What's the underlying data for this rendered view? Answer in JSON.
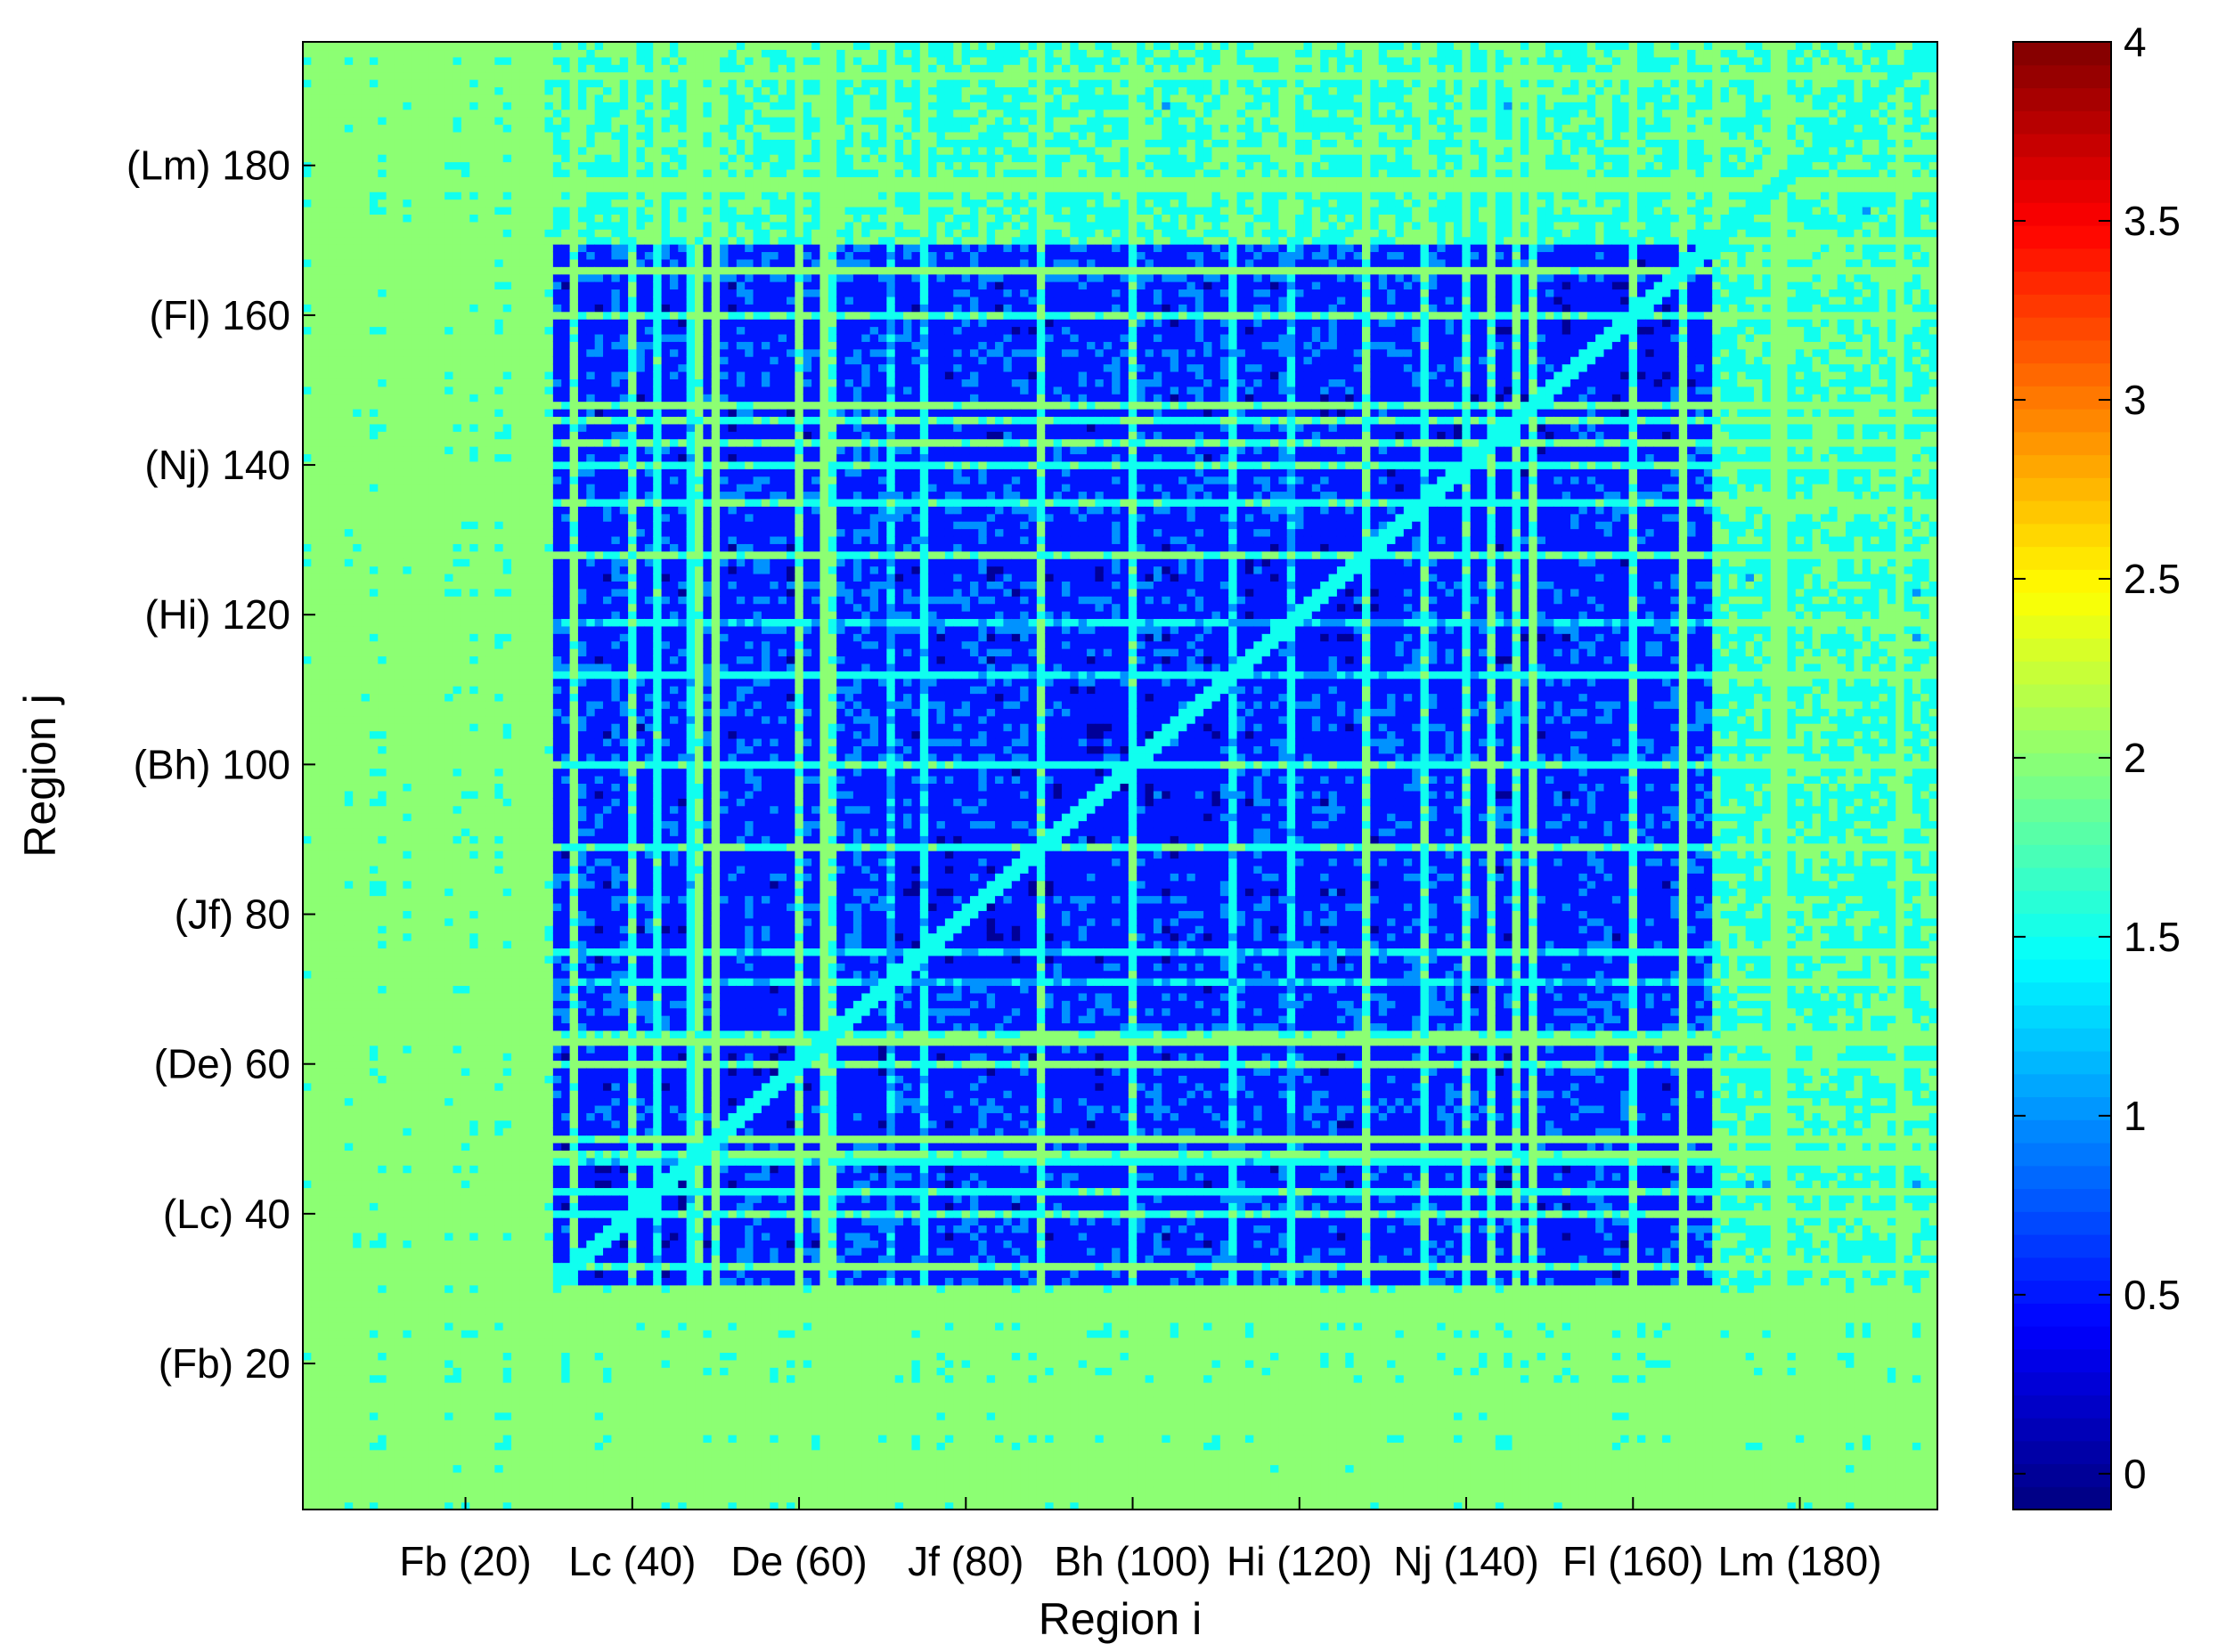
{
  "chart_data": {
    "type": "heatmap",
    "title": "",
    "xlabel": "Region i",
    "ylabel": "Region j",
    "xlim": [
      1,
      196
    ],
    "ylim": [
      1,
      196
    ],
    "x_ticks": [
      {
        "value": 20,
        "label": "Fb (20)"
      },
      {
        "value": 40,
        "label": "Lc (40)"
      },
      {
        "value": 60,
        "label": "De (60)"
      },
      {
        "value": 80,
        "label": "Jf (80)"
      },
      {
        "value": 100,
        "label": "Bh (100)"
      },
      {
        "value": 120,
        "label": "Hi (120)"
      },
      {
        "value": 140,
        "label": "Nj (140)"
      },
      {
        "value": 160,
        "label": "Fl (160)"
      },
      {
        "value": 180,
        "label": "Lm (180)"
      }
    ],
    "y_ticks": [
      {
        "value": 20,
        "label": "(Fb) 20"
      },
      {
        "value": 40,
        "label": "(Lc) 40"
      },
      {
        "value": 60,
        "label": "(De) 60"
      },
      {
        "value": 80,
        "label": "(Jf) 80"
      },
      {
        "value": 100,
        "label": "(Bh) 100"
      },
      {
        "value": 120,
        "label": "(Hi) 120"
      },
      {
        "value": 140,
        "label": "(Nj) 140"
      },
      {
        "value": 160,
        "label": "(Fl) 160"
      },
      {
        "value": 180,
        "label": "(Lm) 180"
      }
    ],
    "colorbar": {
      "colormap": "jet",
      "range": [
        -0.1,
        4
      ],
      "ticks": [
        {
          "value": 0,
          "label": "0"
        },
        {
          "value": 0.5,
          "label": "0.5"
        },
        {
          "value": 1,
          "label": "1"
        },
        {
          "value": 1.5,
          "label": "1.5"
        },
        {
          "value": 2,
          "label": "2"
        },
        {
          "value": 2.5,
          "label": "2.5"
        },
        {
          "value": 3,
          "label": "3"
        },
        {
          "value": 3.5,
          "label": "3.5"
        },
        {
          "value": 4,
          "label": "4"
        }
      ]
    },
    "contour_levels": [
      0.25,
      0.75,
      1.25,
      1.75,
      2.25
    ],
    "groups": [
      {
        "name": "Fb",
        "start": 1,
        "end": 30,
        "avg_within": 1.9
      },
      {
        "name": "Lc",
        "start": 31,
        "end": 50,
        "avg_within": 0.5
      },
      {
        "name": "De",
        "start": 51,
        "end": 70,
        "avg_within": 0.4
      },
      {
        "name": "Jf",
        "start": 71,
        "end": 90,
        "avg_within": 0.45
      },
      {
        "name": "Bh",
        "start": 91,
        "end": 110,
        "avg_within": 0.3
      },
      {
        "name": "Hi",
        "start": 111,
        "end": 130,
        "avg_within": 0.3
      },
      {
        "name": "Nj",
        "start": 131,
        "end": 150,
        "avg_within": 0.2
      },
      {
        "name": "Fl",
        "start": 151,
        "end": 170,
        "avg_within": 0.25
      },
      {
        "name": "Lm",
        "start": 171,
        "end": 196,
        "avg_within": 1.7
      }
    ]
  }
}
